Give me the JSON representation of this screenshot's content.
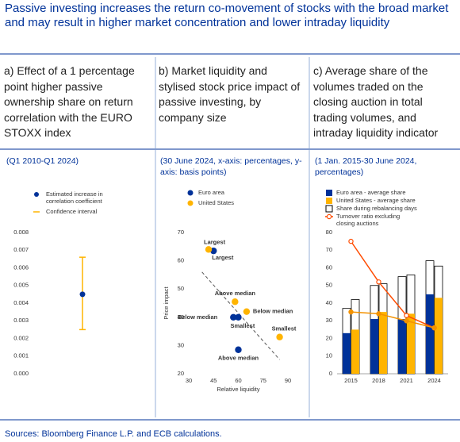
{
  "title": "Passive investing increases the return co-movement of stocks with the broad market and may result in higher market concentration and lower intraday liquidity",
  "source": "Sources: Bloomberg Finance L.P. and ECB calculations.",
  "chart_data": [
    {
      "type": "errorbar",
      "title": "a) Effect of a 1 percentage point higher passive ownership share on return correlation with the EURO STOXX index",
      "subtitle": "(Q1 2010-Q1 2024)",
      "series": [
        {
          "name": "Estimated increase in correlation coefficient",
          "color": "#003299",
          "values": [
            0.0045
          ]
        }
      ],
      "error": {
        "name": "Confidence interval",
        "color": "#ffb400",
        "low": [
          0.0025
        ],
        "high": [
          0.0066
        ]
      },
      "ylim": [
        0,
        0.008
      ],
      "yticks": [
        {
          "value": 0,
          "label": "0.000"
        },
        {
          "value": 0.001,
          "label": "0.001"
        },
        {
          "value": 0.002,
          "label": "0.002"
        },
        {
          "value": 0.003,
          "label": "0.003"
        },
        {
          "value": 0.004,
          "label": "0.004"
        },
        {
          "value": 0.005,
          "label": "0.005"
        },
        {
          "value": 0.006,
          "label": "0.006"
        },
        {
          "value": 0.007,
          "label": "0.007"
        },
        {
          "value": 0.008,
          "label": "0.008"
        }
      ]
    },
    {
      "type": "scatter",
      "title": "b) Market liquidity and stylised stock price impact of passive investing, by company size",
      "subtitle": "(30 June 2024, x-axis: percentages, y-axis: basis points)",
      "xlabel": "Relative liquidity",
      "ylabel": "Price impact",
      "series": [
        {
          "name": "Euro area",
          "color": "#003299",
          "x": [
            45,
            57,
            60,
            60
          ],
          "y": [
            63.5,
            40,
            40,
            28.5
          ],
          "labels": [
            "Largest",
            "Below median",
            "Smallest",
            "Above median"
          ]
        },
        {
          "name": "United States",
          "color": "#ffb400",
          "x": [
            42,
            58,
            65,
            85
          ],
          "y": [
            64,
            45.5,
            42,
            33
          ],
          "labels": [
            "Largest",
            "Above median",
            "Below median",
            "Smallest"
          ]
        }
      ],
      "trend": {
        "x": [
          38,
          85
        ],
        "y": [
          56,
          25
        ]
      },
      "xlim": [
        30,
        90
      ],
      "xticks": [
        30,
        45,
        60,
        75,
        90
      ],
      "ylim": [
        20,
        70
      ],
      "yticks": [
        20,
        30,
        40,
        50,
        60,
        70
      ]
    },
    {
      "type": "bar",
      "title": "c) Average share of the volumes traded on the closing auction in total trading volumes, and intraday liquidity indicator",
      "subtitle": "(1 Jan. 2015-30 June 2024, percentages)",
      "categories": [
        "2015",
        "2018",
        "2021",
        "2024"
      ],
      "series": [
        {
          "name": "Share during rebalancing days",
          "kind": "outline",
          "group": 0,
          "color": "#000000",
          "values": [
            37,
            50,
            55,
            64
          ]
        },
        {
          "kind": "outline",
          "group": 1,
          "color": "#000000",
          "values": [
            42,
            51,
            56,
            61
          ]
        },
        {
          "name": "Euro area - average share",
          "kind": "bar",
          "group": 0,
          "color": "#003299",
          "values": [
            23,
            31,
            31,
            45
          ]
        },
        {
          "name": "United States - average share",
          "kind": "bar",
          "group": 1,
          "color": "#ffb400",
          "values": [
            25,
            35,
            34,
            43
          ]
        },
        {
          "name": "Turnover ratio excluding closing auctions",
          "kind": "line",
          "color": "#ff4b00",
          "values": [
            75,
            52,
            33,
            26
          ]
        },
        {
          "kind": "line",
          "color": "#f39200",
          "values": [
            35,
            34,
            30,
            26
          ]
        }
      ],
      "legend_order": [
        2,
        3,
        0,
        4
      ],
      "ylim": [
        0,
        80
      ],
      "yticks": [
        0,
        10,
        20,
        30,
        40,
        50,
        60,
        70,
        80
      ]
    }
  ]
}
